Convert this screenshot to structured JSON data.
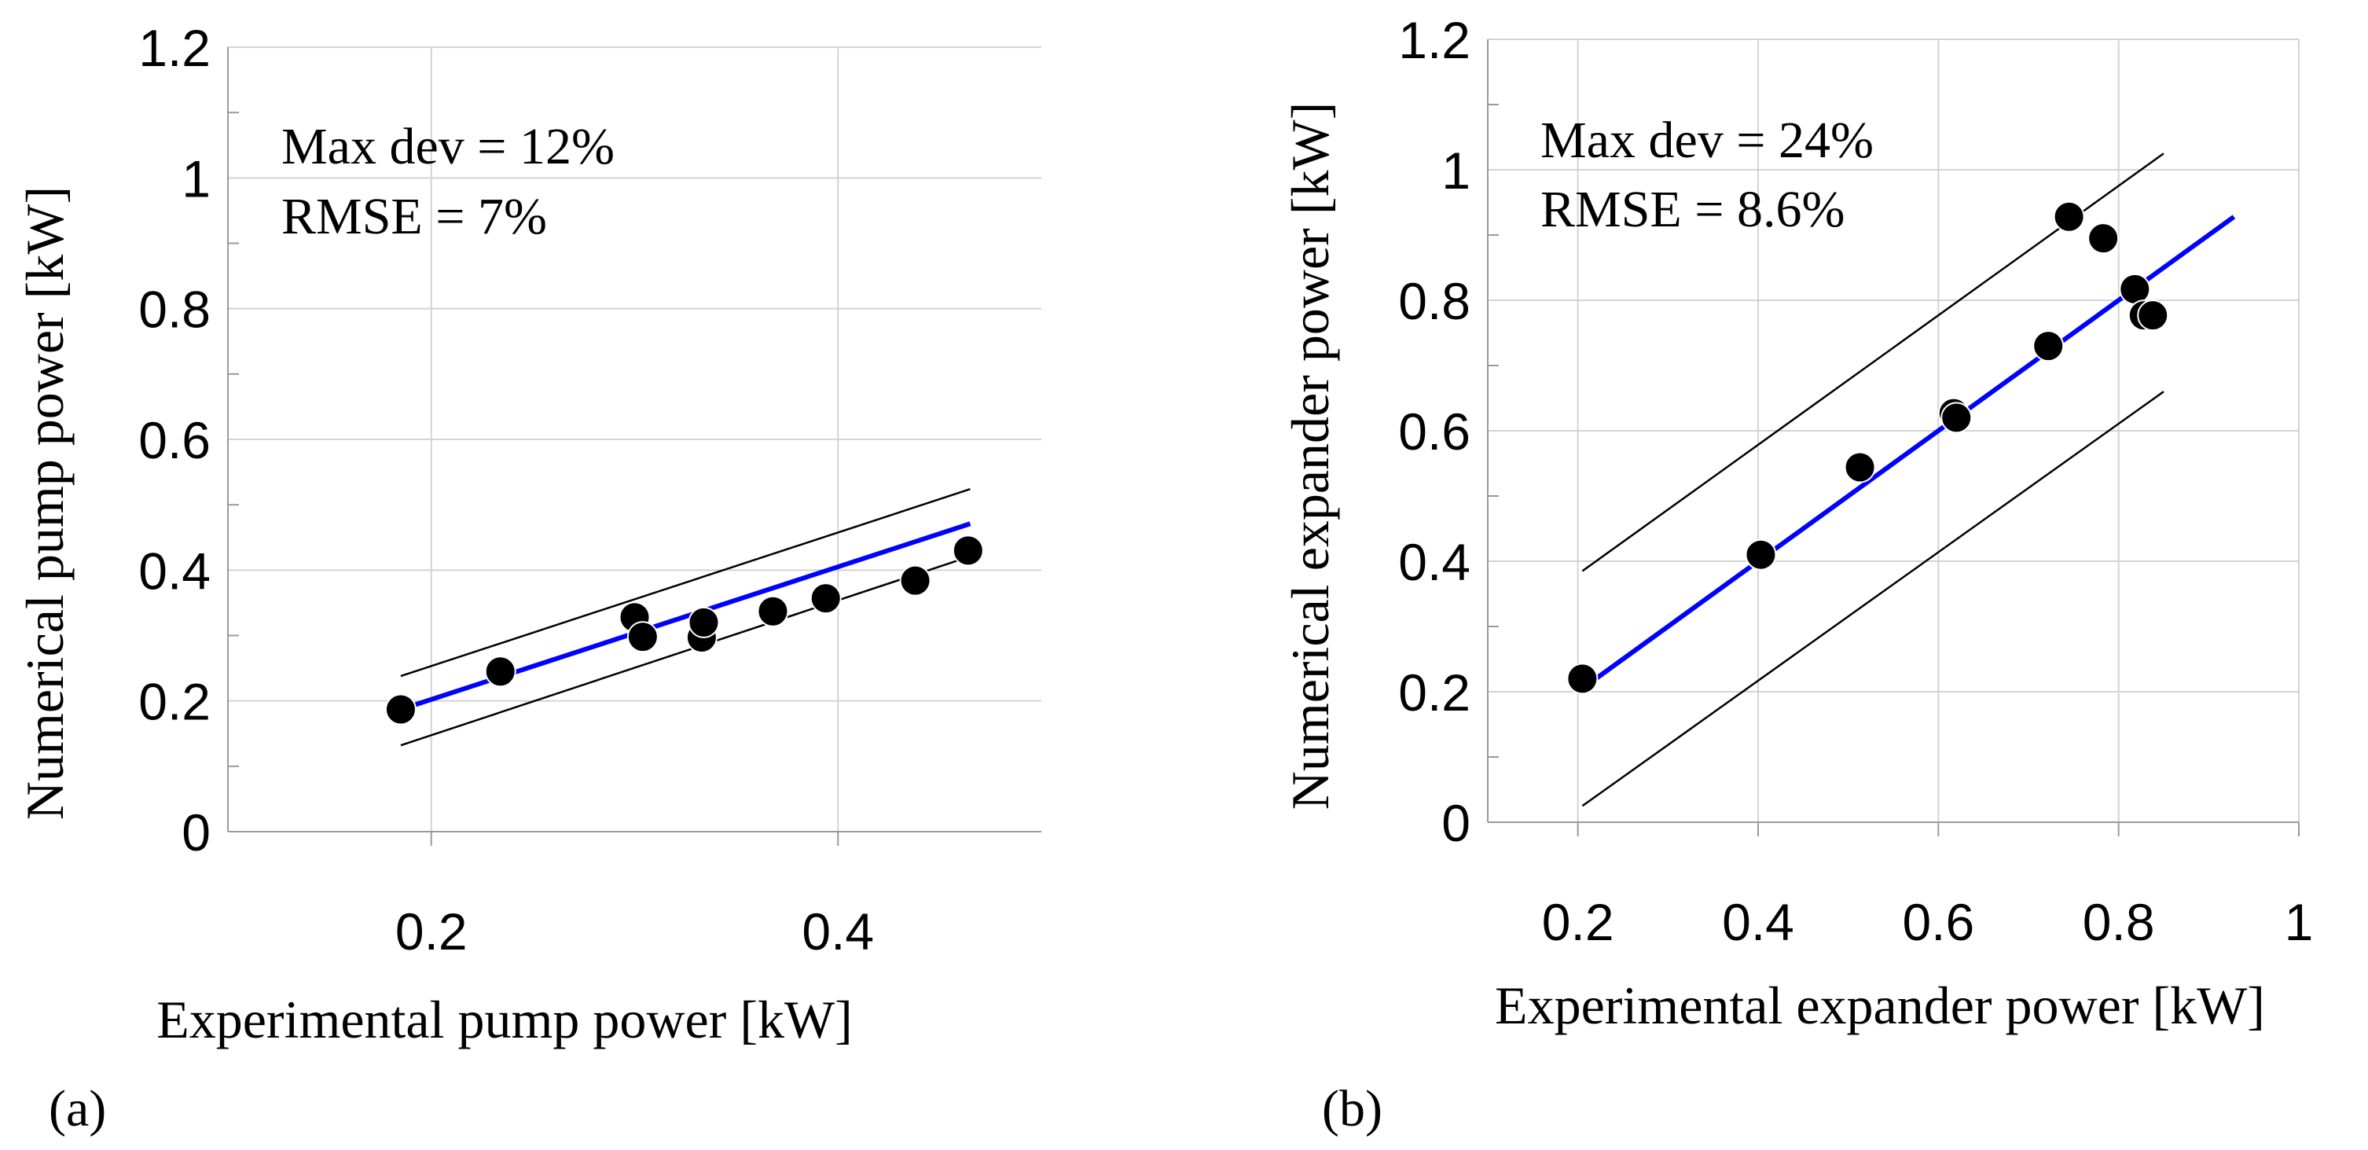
{
  "chart_data": [
    {
      "type": "scatter",
      "panel_label": "(a)",
      "xlabel": "Experimental pump power [kW]",
      "ylabel": "Numerical pump power [kW]",
      "xlim": [
        0.1,
        0.5
      ],
      "ylim": [
        0,
        1.2
      ],
      "xticks": [
        0.2,
        0.4
      ],
      "xtick_labels": [
        "0.2",
        "0.4"
      ],
      "yticks": [
        0,
        0.2,
        0.4,
        0.6,
        0.8,
        1.0,
        1.2
      ],
      "ytick_labels": [
        "0",
        "0.2",
        "0.4",
        "0.6",
        "0.8",
        "1",
        "1.2"
      ],
      "grid": true,
      "annotations": [
        "Max dev = 12%",
        "RMSE = 7%"
      ],
      "points": {
        "x": [
          0.185,
          0.234,
          0.3,
          0.304,
          0.333,
          0.334,
          0.368,
          0.394,
          0.438,
          0.464
        ],
        "y": [
          0.187,
          0.245,
          0.328,
          0.298,
          0.297,
          0.32,
          0.337,
          0.357,
          0.384,
          0.43
        ]
      },
      "fit_line": {
        "x": [
          0.185,
          0.465
        ],
        "y": [
          0.187,
          0.471
        ]
      },
      "upper_bound": {
        "x": [
          0.185,
          0.465
        ],
        "y": [
          0.238,
          0.524
        ]
      },
      "lower_bound": {
        "x": [
          0.185,
          0.465
        ],
        "y": [
          0.132,
          0.421
        ]
      }
    },
    {
      "type": "scatter",
      "panel_label": "(b)",
      "xlabel": "Experimental expander power [kW]",
      "ylabel": "Numerical expander power [kW]",
      "xlim": [
        0.1,
        1.0
      ],
      "ylim": [
        0,
        1.2
      ],
      "xticks": [
        0.2,
        0.4,
        0.6,
        0.8,
        1.0
      ],
      "xtick_labels": [
        "0.2",
        "0.4",
        "0.6",
        "0.8",
        "1"
      ],
      "yticks": [
        0,
        0.2,
        0.4,
        0.6,
        0.8,
        1.0,
        1.2
      ],
      "ytick_labels": [
        "0",
        "0.2",
        "0.4",
        "0.6",
        "0.8",
        "1",
        "1.2"
      ],
      "grid": true,
      "annotations": [
        "Max dev = 24%",
        "RMSE = 8.6%"
      ],
      "points": {
        "x": [
          0.205,
          0.403,
          0.513,
          0.617,
          0.62,
          0.722,
          0.745,
          0.783,
          0.818,
          0.828,
          0.838
        ],
        "y": [
          0.22,
          0.41,
          0.544,
          0.627,
          0.62,
          0.73,
          0.928,
          0.895,
          0.817,
          0.777,
          0.777
        ]
      },
      "fit_line": {
        "x": [
          0.205,
          0.928
        ],
        "y": [
          0.205,
          0.928
        ]
      },
      "upper_bound": {
        "x": [
          0.205,
          0.85
        ],
        "y": [
          0.385,
          1.025
        ]
      },
      "lower_bound": {
        "x": [
          0.205,
          0.85
        ],
        "y": [
          0.025,
          0.66
        ]
      }
    }
  ]
}
